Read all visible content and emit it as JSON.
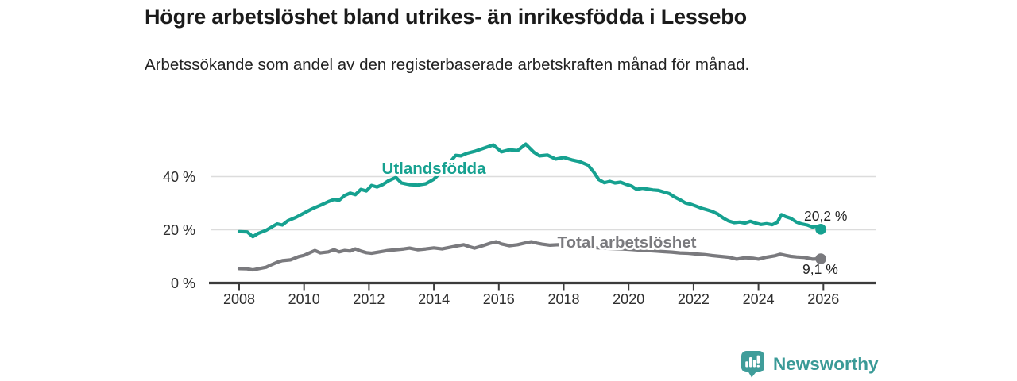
{
  "header": {
    "title": "Högre arbetslöshet bland utrikes- än inrikesfödda i Lessebo",
    "subtitle": "Arbetssökande som andel av den registerbaserade arbetskraften månad för månad."
  },
  "footer": {
    "brand": "Newsworthy",
    "brand_color": "#3f9d9a",
    "logo_icon": "newsworthy-speech-bubble-bar-chart-icon"
  },
  "colors": {
    "background": "#ffffff",
    "title_text": "#1b1b1b",
    "teal_series": "#16a190",
    "gray_series": "#7a7a7e",
    "gridline": "#dcdcdc",
    "axis": "#3c3c3c",
    "tick_label": "#2e2e2e",
    "value_label": "#222222"
  },
  "chart_data": {
    "type": "line",
    "title": "Högre arbetslöshet bland utrikes- än inrikesfödda i Lessebo",
    "subtitle": "Arbetssökande som andel av den registerbaserade arbetskraften månad för månad.",
    "xlabel": "",
    "ylabel": "",
    "unit": "%",
    "decimal_style": "comma",
    "grid": "horizontal",
    "legend_position": "inline-labels-on-lines",
    "xlim": [
      2006.9,
      2027.4
    ],
    "ylim": [
      0,
      57
    ],
    "x_ticks": [
      "2008",
      "2010",
      "2012",
      "2014",
      "2016",
      "2018",
      "2020",
      "2022",
      "2024",
      "2026"
    ],
    "x_tick_years": [
      2008,
      2010,
      2012,
      2014,
      2016,
      2018,
      2020,
      2022,
      2024,
      2026
    ],
    "y_ticks": [
      {
        "value": 0,
        "label": "0 %"
      },
      {
        "value": 20,
        "label": "20 %"
      },
      {
        "value": 40,
        "label": "40 %"
      }
    ],
    "series": [
      {
        "name": "Utlandsfödda",
        "color": "#16a190",
        "end_value": 20.2,
        "end_label": "20,2 %",
        "points": [
          [
            2008.0,
            19.3
          ],
          [
            2008.25,
            19.2
          ],
          [
            2008.42,
            17.4
          ],
          [
            2008.58,
            18.6
          ],
          [
            2008.83,
            19.8
          ],
          [
            2009.0,
            21.0
          ],
          [
            2009.17,
            22.2
          ],
          [
            2009.33,
            21.8
          ],
          [
            2009.5,
            23.4
          ],
          [
            2009.75,
            24.7
          ],
          [
            2010.0,
            26.3
          ],
          [
            2010.25,
            27.9
          ],
          [
            2010.5,
            29.2
          ],
          [
            2010.75,
            30.6
          ],
          [
            2010.92,
            31.4
          ],
          [
            2011.08,
            31.1
          ],
          [
            2011.25,
            32.9
          ],
          [
            2011.42,
            33.8
          ],
          [
            2011.58,
            33.2
          ],
          [
            2011.75,
            35.2
          ],
          [
            2011.92,
            34.6
          ],
          [
            2012.08,
            36.7
          ],
          [
            2012.25,
            36.1
          ],
          [
            2012.42,
            37.0
          ],
          [
            2012.58,
            38.3
          ],
          [
            2012.83,
            39.7
          ],
          [
            2013.0,
            37.6
          ],
          [
            2013.25,
            37.0
          ],
          [
            2013.5,
            36.8
          ],
          [
            2013.75,
            37.3
          ],
          [
            2014.0,
            39.0
          ],
          [
            2014.25,
            42.0
          ],
          [
            2014.5,
            45.5
          ],
          [
            2014.67,
            48.0
          ],
          [
            2014.83,
            47.8
          ],
          [
            2015.0,
            48.7
          ],
          [
            2015.25,
            49.5
          ],
          [
            2015.5,
            50.5
          ],
          [
            2015.83,
            51.9
          ],
          [
            2016.08,
            49.3
          ],
          [
            2016.33,
            50.1
          ],
          [
            2016.58,
            49.8
          ],
          [
            2016.83,
            52.2
          ],
          [
            2017.08,
            49.2
          ],
          [
            2017.25,
            47.8
          ],
          [
            2017.5,
            48.1
          ],
          [
            2017.75,
            46.6
          ],
          [
            2018.0,
            47.2
          ],
          [
            2018.25,
            46.3
          ],
          [
            2018.5,
            45.6
          ],
          [
            2018.75,
            44.3
          ],
          [
            2018.92,
            41.8
          ],
          [
            2019.08,
            38.9
          ],
          [
            2019.25,
            37.7
          ],
          [
            2019.42,
            38.2
          ],
          [
            2019.58,
            37.6
          ],
          [
            2019.75,
            37.9
          ],
          [
            2019.92,
            37.1
          ],
          [
            2020.08,
            36.5
          ],
          [
            2020.25,
            35.2
          ],
          [
            2020.42,
            35.6
          ],
          [
            2020.58,
            35.3
          ],
          [
            2020.75,
            35.0
          ],
          [
            2020.92,
            34.8
          ],
          [
            2021.08,
            34.2
          ],
          [
            2021.25,
            33.6
          ],
          [
            2021.42,
            32.3
          ],
          [
            2021.58,
            31.3
          ],
          [
            2021.75,
            30.1
          ],
          [
            2021.92,
            29.6
          ],
          [
            2022.08,
            28.9
          ],
          [
            2022.25,
            28.1
          ],
          [
            2022.42,
            27.5
          ],
          [
            2022.58,
            26.9
          ],
          [
            2022.75,
            25.9
          ],
          [
            2022.92,
            24.4
          ],
          [
            2023.08,
            23.3
          ],
          [
            2023.25,
            22.7
          ],
          [
            2023.42,
            22.9
          ],
          [
            2023.58,
            22.5
          ],
          [
            2023.75,
            23.2
          ],
          [
            2023.92,
            22.5
          ],
          [
            2024.08,
            22.0
          ],
          [
            2024.25,
            22.3
          ],
          [
            2024.42,
            21.9
          ],
          [
            2024.58,
            22.8
          ],
          [
            2024.71,
            25.7
          ],
          [
            2024.83,
            25.0
          ],
          [
            2025.0,
            24.3
          ],
          [
            2025.17,
            22.9
          ],
          [
            2025.33,
            22.2
          ],
          [
            2025.5,
            21.8
          ],
          [
            2025.67,
            21.0
          ],
          [
            2025.79,
            21.3
          ],
          [
            2025.92,
            20.2
          ]
        ]
      },
      {
        "name": "Total arbetslöshet",
        "color": "#7a7a7e",
        "end_value": 9.1,
        "end_label": "9,1 %",
        "points": [
          [
            2008.0,
            5.4
          ],
          [
            2008.25,
            5.3
          ],
          [
            2008.42,
            4.9
          ],
          [
            2008.58,
            5.3
          ],
          [
            2008.83,
            5.9
          ],
          [
            2009.0,
            6.9
          ],
          [
            2009.17,
            7.8
          ],
          [
            2009.33,
            8.4
          ],
          [
            2009.58,
            8.7
          ],
          [
            2009.83,
            9.9
          ],
          [
            2010.0,
            10.4
          ],
          [
            2010.17,
            11.3
          ],
          [
            2010.33,
            12.2
          ],
          [
            2010.5,
            11.3
          ],
          [
            2010.75,
            11.7
          ],
          [
            2010.92,
            12.5
          ],
          [
            2011.08,
            11.7
          ],
          [
            2011.25,
            12.2
          ],
          [
            2011.42,
            12.0
          ],
          [
            2011.58,
            12.8
          ],
          [
            2011.75,
            12.0
          ],
          [
            2011.92,
            11.4
          ],
          [
            2012.08,
            11.2
          ],
          [
            2012.33,
            11.7
          ],
          [
            2012.58,
            12.2
          ],
          [
            2012.83,
            12.5
          ],
          [
            2013.08,
            12.8
          ],
          [
            2013.25,
            13.1
          ],
          [
            2013.5,
            12.5
          ],
          [
            2013.75,
            12.8
          ],
          [
            2014.0,
            13.2
          ],
          [
            2014.25,
            12.8
          ],
          [
            2014.5,
            13.4
          ],
          [
            2014.75,
            14.0
          ],
          [
            2014.92,
            14.4
          ],
          [
            2015.08,
            13.7
          ],
          [
            2015.25,
            13.1
          ],
          [
            2015.5,
            14.0
          ],
          [
            2015.75,
            15.0
          ],
          [
            2015.92,
            15.5
          ],
          [
            2016.08,
            14.7
          ],
          [
            2016.33,
            14.0
          ],
          [
            2016.58,
            14.4
          ],
          [
            2016.83,
            15.1
          ],
          [
            2017.0,
            15.5
          ],
          [
            2017.17,
            15.0
          ],
          [
            2017.33,
            14.6
          ],
          [
            2017.58,
            14.2
          ],
          [
            2017.83,
            14.4
          ],
          [
            2018.08,
            14.0
          ],
          [
            2018.33,
            13.8
          ],
          [
            2018.58,
            13.6
          ],
          [
            2018.83,
            13.4
          ],
          [
            2019.08,
            13.2
          ],
          [
            2019.33,
            13.0
          ],
          [
            2019.58,
            12.9
          ],
          [
            2019.83,
            12.8
          ],
          [
            2020.08,
            12.6
          ],
          [
            2020.33,
            12.4
          ],
          [
            2020.58,
            12.2
          ],
          [
            2020.83,
            12.0
          ],
          [
            2021.08,
            11.8
          ],
          [
            2021.33,
            11.6
          ],
          [
            2021.58,
            11.3
          ],
          [
            2021.83,
            11.2
          ],
          [
            2022.08,
            10.9
          ],
          [
            2022.33,
            10.7
          ],
          [
            2022.58,
            10.3
          ],
          [
            2022.83,
            10.0
          ],
          [
            2023.08,
            9.7
          ],
          [
            2023.33,
            9.0
          ],
          [
            2023.58,
            9.5
          ],
          [
            2023.83,
            9.3
          ],
          [
            2024.0,
            9.0
          ],
          [
            2024.25,
            9.7
          ],
          [
            2024.5,
            10.2
          ],
          [
            2024.67,
            10.8
          ],
          [
            2024.83,
            10.4
          ],
          [
            2025.0,
            10.0
          ],
          [
            2025.17,
            9.8
          ],
          [
            2025.42,
            9.6
          ],
          [
            2025.67,
            9.0
          ],
          [
            2025.92,
            9.1
          ]
        ]
      }
    ]
  }
}
